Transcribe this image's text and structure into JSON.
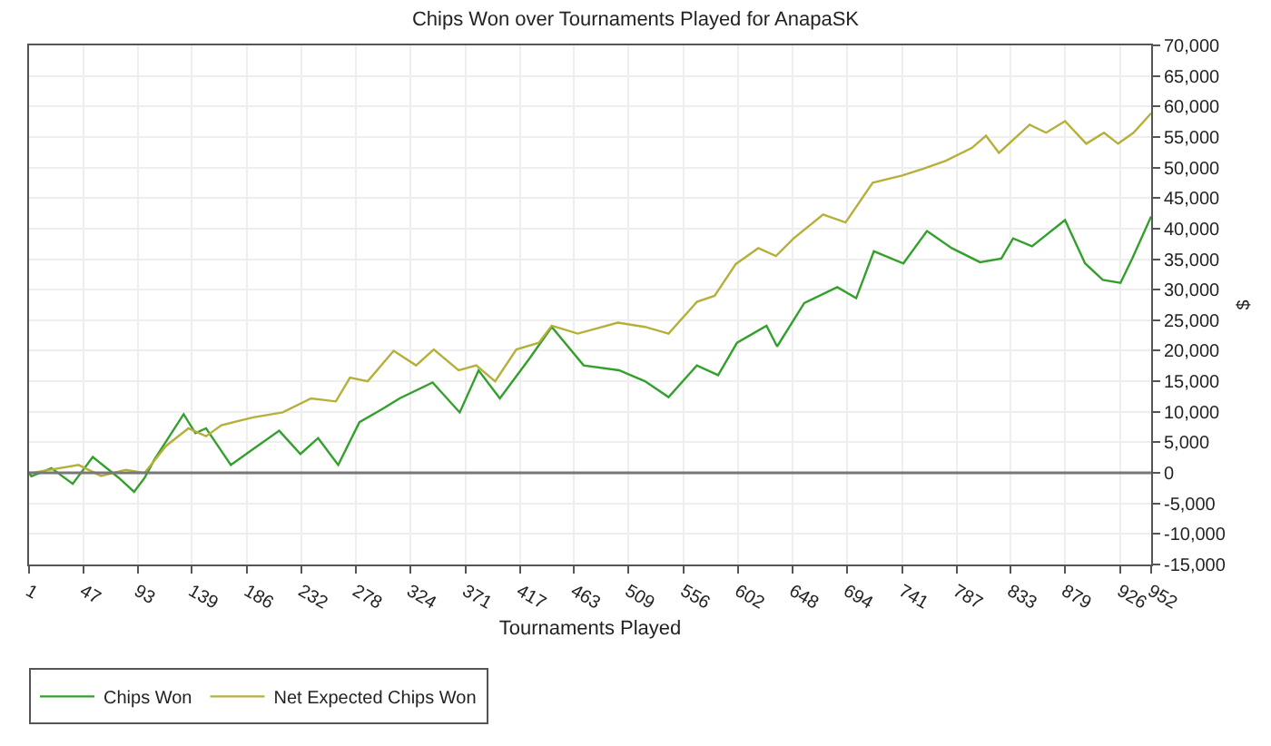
{
  "chart_data": {
    "type": "line",
    "title": "Chips Won over Tournaments Played for AnapaSK",
    "xlabel": "Tournaments Played",
    "ylabel": "$",
    "xlim": [
      1,
      952
    ],
    "xticks": [
      1,
      47,
      93,
      139,
      186,
      232,
      278,
      324,
      371,
      417,
      463,
      509,
      556,
      602,
      648,
      694,
      741,
      787,
      833,
      879,
      926,
      952
    ],
    "ylim": [
      -15000,
      70000
    ],
    "yticks": [
      {
        "value": -15000,
        "label": "-15,000"
      },
      {
        "value": -10000,
        "label": "-10,000"
      },
      {
        "value": -5000,
        "label": "-5,000"
      },
      0,
      {
        "value": 5000,
        "label": "5,000"
      },
      {
        "value": 10000,
        "label": "10,000"
      },
      {
        "value": 15000,
        "label": "15,000"
      },
      {
        "value": 20000,
        "label": "20,000"
      },
      {
        "value": 25000,
        "label": "25,000"
      },
      {
        "value": 30000,
        "label": "30,000"
      },
      {
        "value": 35000,
        "label": "35,000"
      },
      {
        "value": 40000,
        "label": "40,000"
      },
      {
        "value": 45000,
        "label": "45,000"
      },
      {
        "value": 50000,
        "label": "50,000"
      },
      {
        "value": 55000,
        "label": "55,000"
      },
      {
        "value": 60000,
        "label": "60,000"
      },
      {
        "value": 65000,
        "label": "65,000"
      },
      {
        "value": 70000,
        "label": "70,000"
      }
    ],
    "grid": true,
    "legend": "bottom left",
    "marker": "none",
    "line_style": "solid",
    "ref_lines": [
      {
        "axis": "y",
        "value": 0,
        "color": "#777777"
      }
    ],
    "series": [
      {
        "name": "Chips Won",
        "color": "#33a02c",
        "x": [
          1,
          3,
          20,
          38,
          55,
          77,
          90,
          99,
          107,
          132,
          142,
          151,
          172,
          191,
          213,
          231,
          246,
          263,
          281,
          300,
          315,
          343,
          366,
          382,
          400,
          425,
          444,
          471,
          501,
          523,
          543,
          567,
          585,
          601,
          626,
          635,
          658,
          686,
          702,
          717,
          742,
          762,
          783,
          807,
          825,
          835,
          851,
          879,
          896,
          911,
          926,
          936,
          952
        ],
        "values": [
          0,
          -560,
          780,
          -1800,
          2600,
          -800,
          -3100,
          -800,
          2100,
          9600,
          6500,
          7300,
          1300,
          3900,
          6900,
          3100,
          5700,
          1300,
          8300,
          10400,
          12200,
          14800,
          9900,
          16800,
          12200,
          18700,
          23900,
          17600,
          16800,
          15000,
          12400,
          17600,
          16000,
          21300,
          24100,
          20700,
          27800,
          30400,
          28600,
          36300,
          34300,
          39600,
          36800,
          34500,
          35100,
          38400,
          37100,
          41400,
          34300,
          31600,
          31100,
          35100,
          42000
        ]
      },
      {
        "name": "Net Expected Chips Won",
        "color": "#b5b03a",
        "x": [
          1,
          3,
          43,
          62,
          83,
          99,
          117,
          136,
          151,
          164,
          191,
          216,
          240,
          261,
          273,
          288,
          310,
          329,
          344,
          365,
          380,
          396,
          414,
          433,
          444,
          466,
          500,
          523,
          543,
          567,
          582,
          600,
          619,
          634,
          649,
          674,
          693,
          716,
          741,
          759,
          778,
          800,
          812,
          823,
          849,
          863,
          879,
          897,
          912,
          924,
          937,
          952
        ],
        "values": [
          0,
          0,
          1300,
          -500,
          500,
          0,
          4400,
          7300,
          6000,
          7800,
          9100,
          9900,
          12200,
          11700,
          15600,
          15000,
          20000,
          17600,
          20200,
          16800,
          17600,
          15000,
          20200,
          21300,
          24100,
          22800,
          24600,
          23900,
          22800,
          28000,
          29000,
          34200,
          36800,
          35500,
          38400,
          42300,
          41000,
          47500,
          48700,
          49800,
          51100,
          53200,
          55200,
          52400,
          57000,
          55700,
          57600,
          53900,
          55700,
          53900,
          55700,
          58900
        ]
      }
    ]
  }
}
